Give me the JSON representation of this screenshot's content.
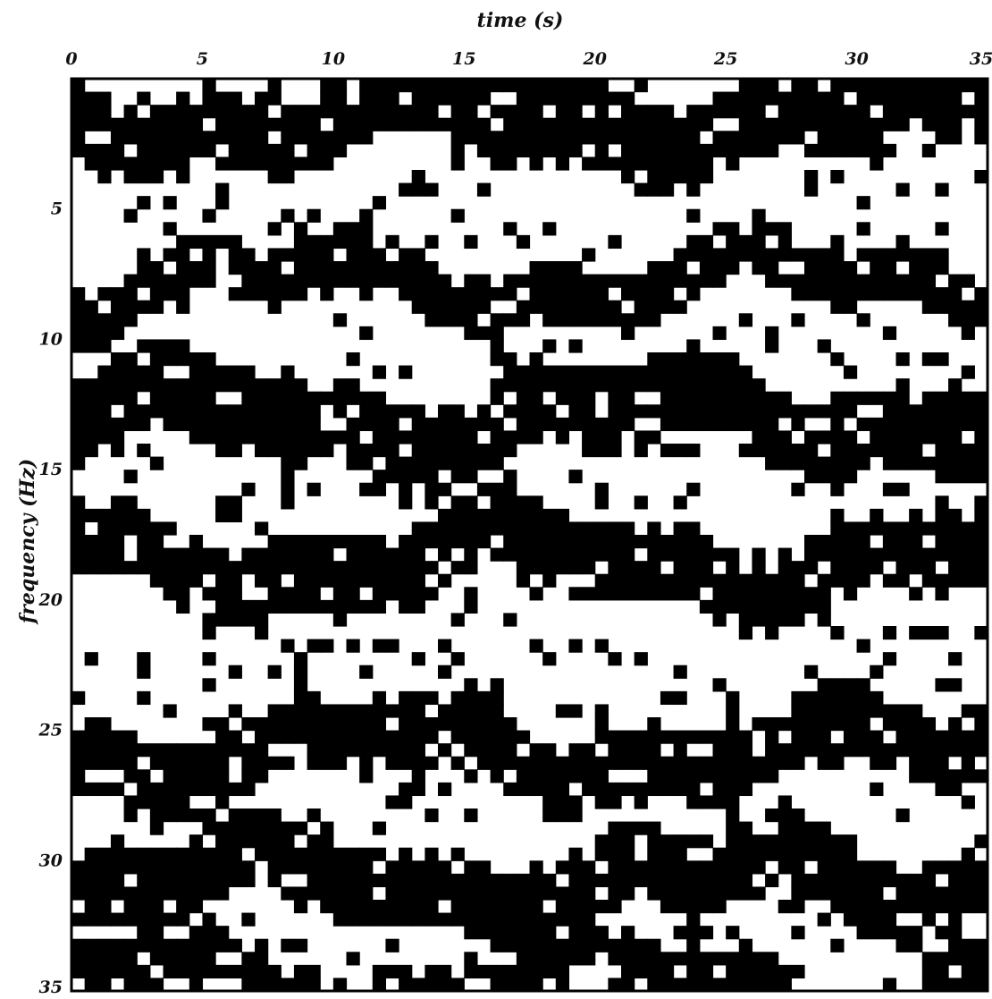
{
  "chart_data": {
    "type": "heatmap",
    "title": "",
    "xlabel": "time (s)",
    "ylabel": "frequency (Hz)",
    "xlim": [
      0,
      35
    ],
    "ylim": [
      0,
      35
    ],
    "x_axis_position": "top",
    "y_axis_direction": "downward",
    "x_ticks": [
      0,
      5,
      10,
      15,
      20,
      25,
      30,
      35
    ],
    "y_ticks": [
      5,
      10,
      15,
      20,
      25,
      30,
      35
    ],
    "grid": false,
    "legend": "none",
    "colors": {
      "on": "#000000",
      "off": "#ffffff"
    },
    "value_encoding": "binary map, 1 = black cell, 0 = white cell",
    "cell_grid": {
      "columns": 70,
      "rows": 70,
      "cell_size": 0.5
    },
    "bands": [
      {
        "center": 1.5,
        "half_width": 1.6
      },
      {
        "center": 7.8,
        "half_width": 1.1
      },
      {
        "center": 13.0,
        "half_width": 1.6
      },
      {
        "center": 18.5,
        "half_width": 1.5
      },
      {
        "center": 25.8,
        "half_width": 1.4
      },
      {
        "center": 30.8,
        "half_width": 1.5
      },
      {
        "center": 34.5,
        "half_width": 0.9
      }
    ]
  }
}
